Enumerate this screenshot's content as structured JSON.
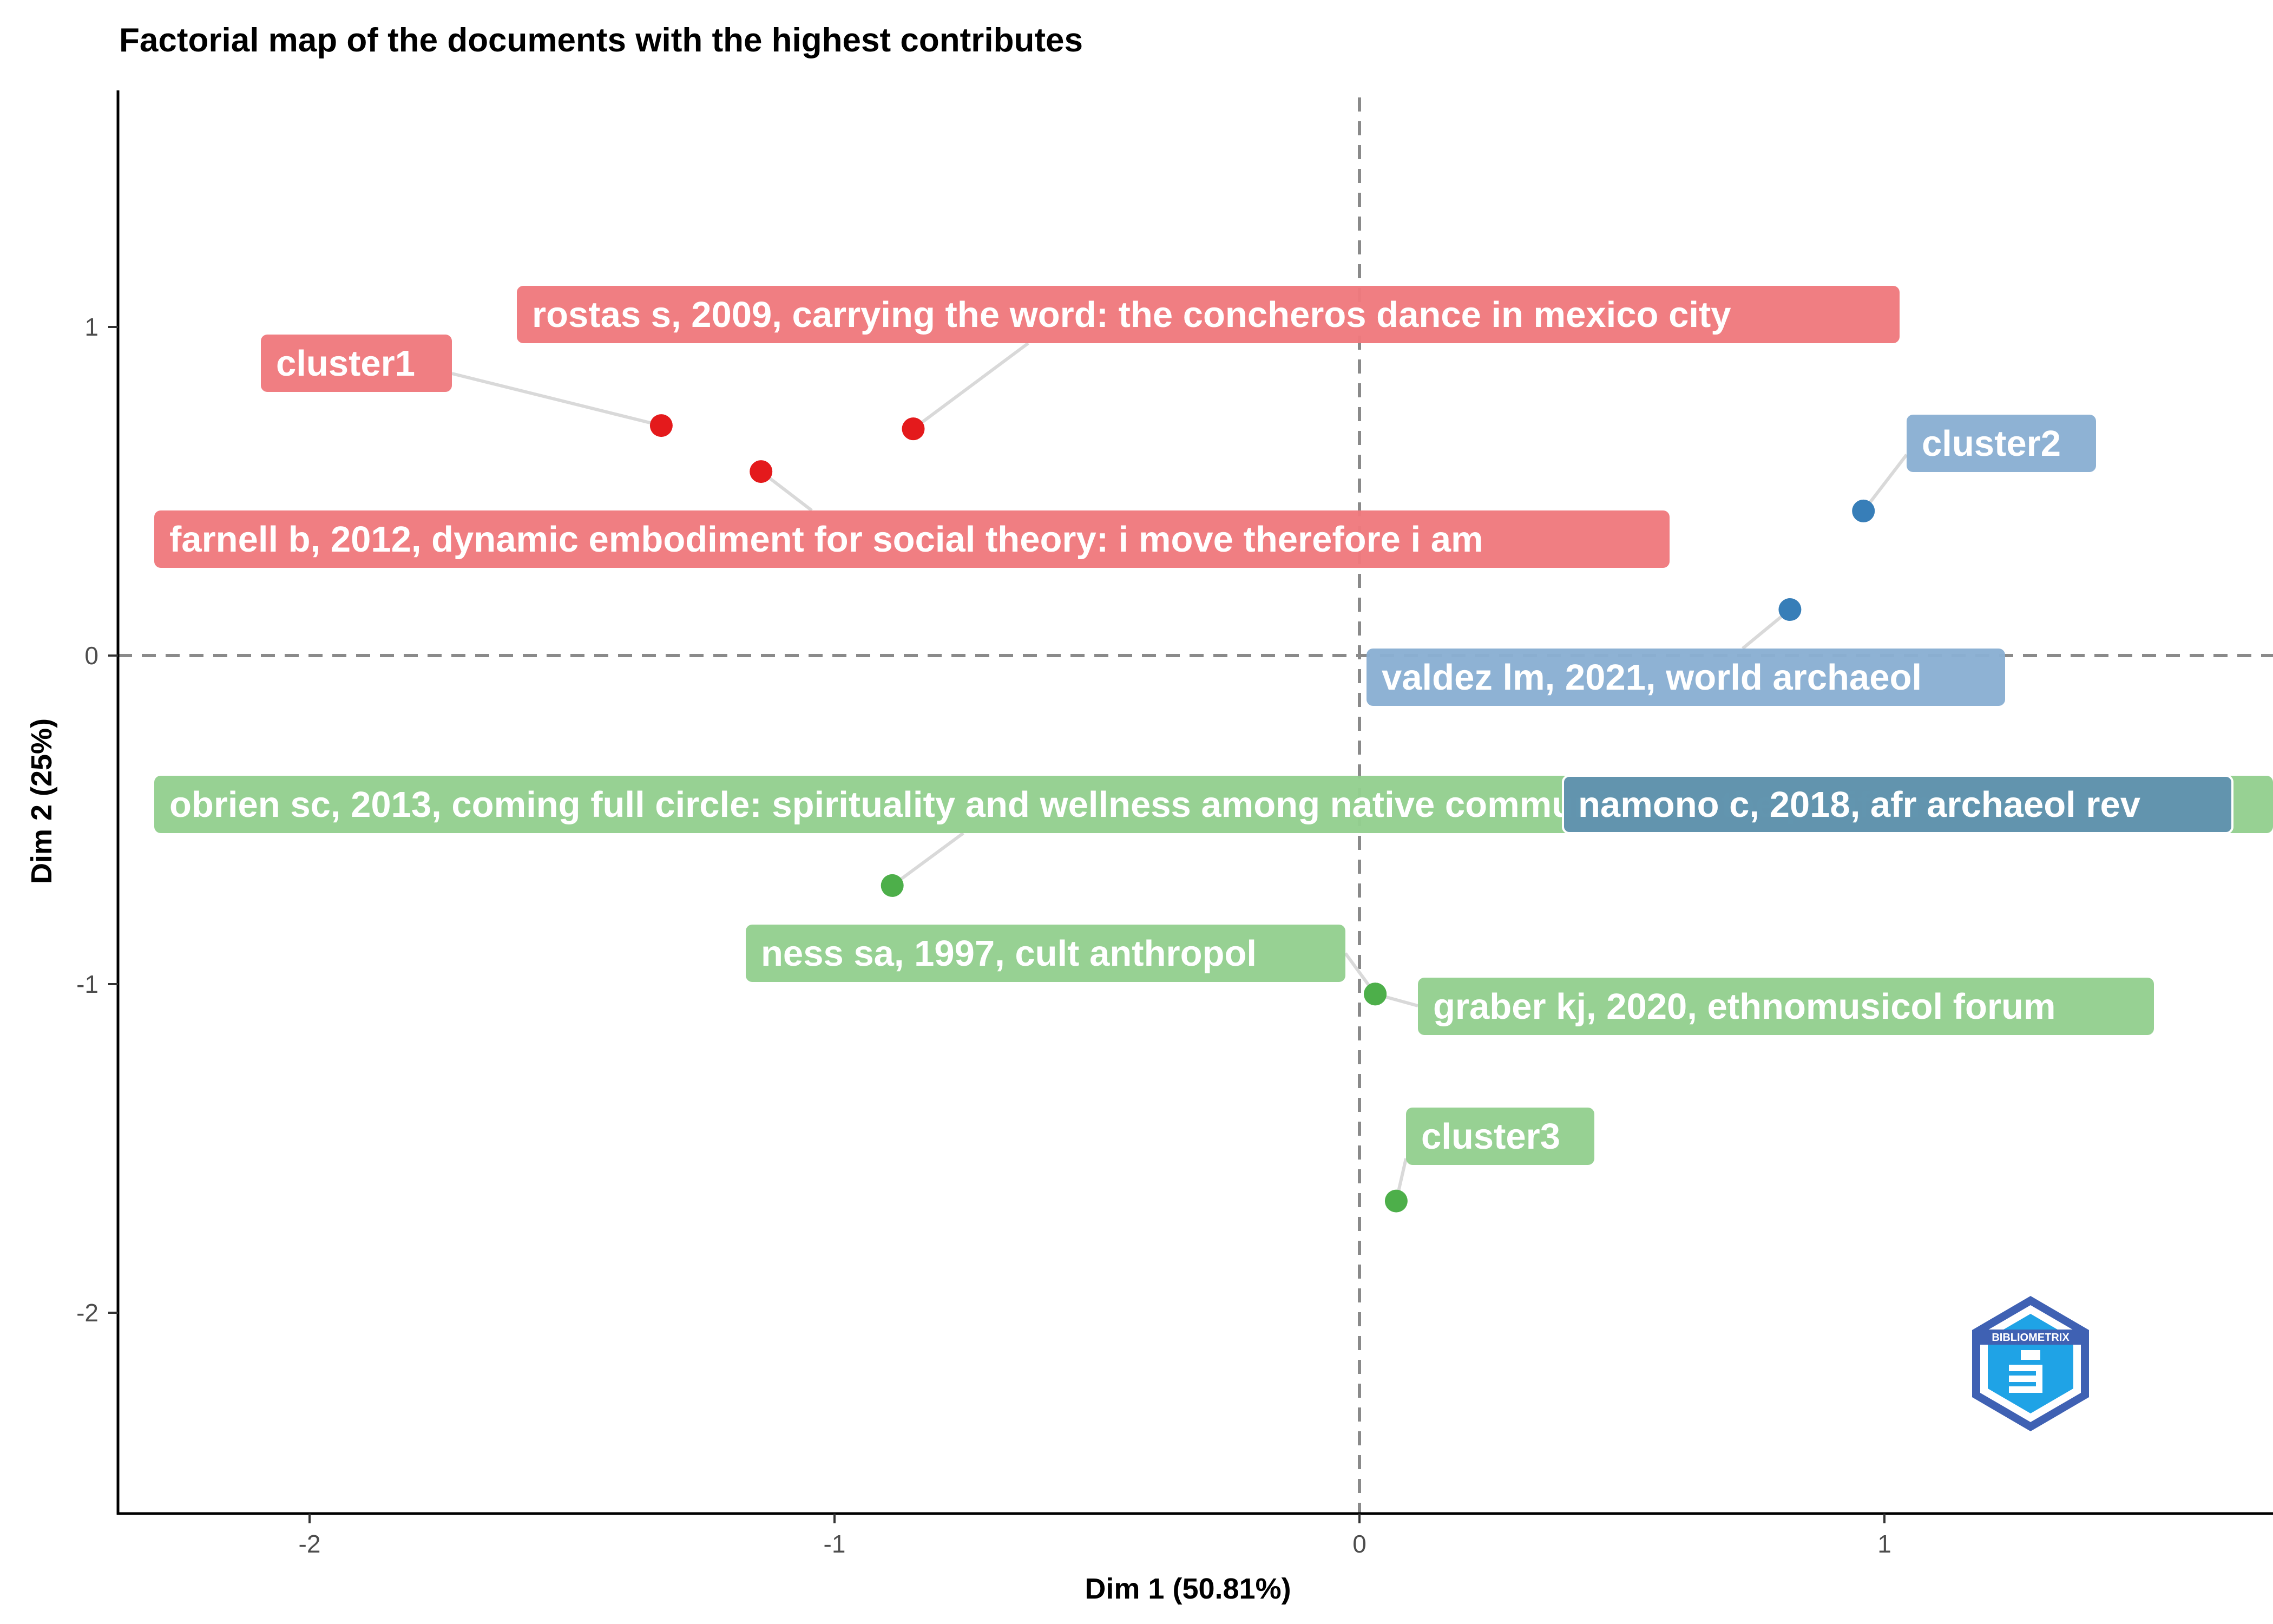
{
  "chart_data": {
    "type": "scatter",
    "title": "Factorial map of the documents with the highest contributes",
    "xlabel": "Dim 1 (50.81%)",
    "ylabel": "Dim 2 (25%)",
    "xlim": [
      -2.4,
      1.72
    ],
    "ylim": [
      -2.6,
      1.7
    ],
    "xticks": [
      -2,
      -1,
      0,
      1
    ],
    "yticks": [
      -2,
      -1,
      0,
      1
    ],
    "reference_lines": {
      "x": 0,
      "y": 0,
      "style": "dashed"
    },
    "grid": false,
    "legend": "none",
    "clusters": [
      {
        "name": "cluster1",
        "color": "#e41a1c",
        "label_color": "#f07a7e"
      },
      {
        "name": "cluster2",
        "color": "#377eb8",
        "label_color": "#8aafd3"
      },
      {
        "name": "cluster3",
        "color": "#4daf4a",
        "label_color": "#94d090"
      }
    ],
    "points": [
      {
        "label": "rostas s, 2009, carrying the word: the concheros dance in mexico city",
        "x": -0.85,
        "y": 0.69,
        "cluster": 1
      },
      {
        "label": "cluster1",
        "x": -1.33,
        "y": 0.7,
        "cluster": 1
      },
      {
        "label": "farnell b, 2012, dynamic embodiment for social theory: i move therefore i am",
        "x": -1.14,
        "y": 0.56,
        "cluster": 1
      },
      {
        "label": "cluster2",
        "x": 0.96,
        "y": 0.44,
        "cluster": 2
      },
      {
        "label": "valdez lm, 2021, world archaeol",
        "x": 0.82,
        "y": 0.14,
        "cluster": 2
      },
      {
        "label": "namono c, 2018, afr archaeol rev",
        "x": 0.57,
        "y": -0.46,
        "cluster": 2
      },
      {
        "label": "obrien sc, 2013, coming full circle: spirituality and wellness among native communities in the pacific northwest",
        "x": -0.89,
        "y": -0.7,
        "cluster": 3
      },
      {
        "label": "ness sa, 1997, cult anthropol",
        "x": 0.03,
        "y": -1.03,
        "cluster": 3
      },
      {
        "label": "graber kj, 2020, ethnomusicol forum",
        "x": 0.03,
        "y": -1.03,
        "cluster": 3
      },
      {
        "label": "cluster3",
        "x": 0.07,
        "y": -1.66,
        "cluster": 3
      }
    ]
  },
  "logo": {
    "text": "BIBLIOMETRIX",
    "icon": "bibliometrix-logo-icon"
  }
}
